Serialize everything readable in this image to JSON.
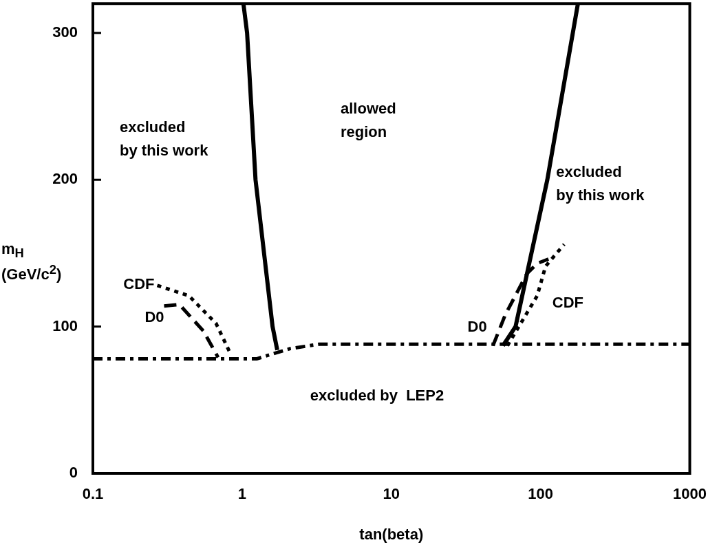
{
  "chart_data": {
    "type": "line",
    "xlabel": "tan(beta)",
    "ylabel": "m$_{H}$ (GeV/c$^{2}$)",
    "log": "x",
    "xlim": [
      0.1,
      1000
    ],
    "ylim": [
      0,
      320
    ],
    "xticks": [
      0.1,
      1,
      10,
      100,
      1000
    ],
    "yticks": [
      0,
      100,
      200,
      300
    ],
    "grid": false,
    "marker": "none",
    "series": [
      {
        "color": "#000000",
        "line_style": "solid",
        "x": [
          1.02,
          1.08,
          1.23,
          1.6,
          1.72
        ],
        "values": [
          320,
          300,
          200,
          100,
          84
        ]
      },
      {
        "color": "#000000",
        "line_style": "solid",
        "x": [
          56,
          68,
          111,
          178
        ],
        "values": [
          87,
          100,
          200,
          320
        ]
      },
      {
        "color": "#000000",
        "line_style": "dashdot",
        "x": [
          0.1,
          1.25,
          2.1,
          3.3,
          1000
        ],
        "values": [
          78,
          78,
          85,
          88,
          88
        ]
      },
      {
        "name": "CDF",
        "color": "#000000",
        "line_style": "dotted",
        "x": [
          0.27,
          0.44,
          0.67,
          0.84
        ],
        "values": [
          128,
          121,
          102,
          81
        ]
      },
      {
        "name": "D0",
        "color": "#000000",
        "line_style": "dashed",
        "x": [
          0.3,
          0.38,
          0.55,
          0.69
        ],
        "values": [
          114,
          115,
          97,
          79
        ]
      },
      {
        "name": "CDF",
        "color": "#000000",
        "line_style": "dotted",
        "x": [
          60,
          95,
          108,
          121,
          144
        ],
        "values": [
          87,
          121,
          141,
          147,
          156
        ]
      },
      {
        "name": "D0",
        "color": "#000000",
        "line_style": "dashed",
        "x": [
          48,
          58,
          81,
          95,
          113
        ],
        "values": [
          87,
          108,
          136,
          143,
          146
        ]
      }
    ],
    "annotations": [
      "excluded\nby this work",
      "allowed\nregion",
      "excluded\nby this work",
      "excluded by  LEP2"
    ]
  }
}
